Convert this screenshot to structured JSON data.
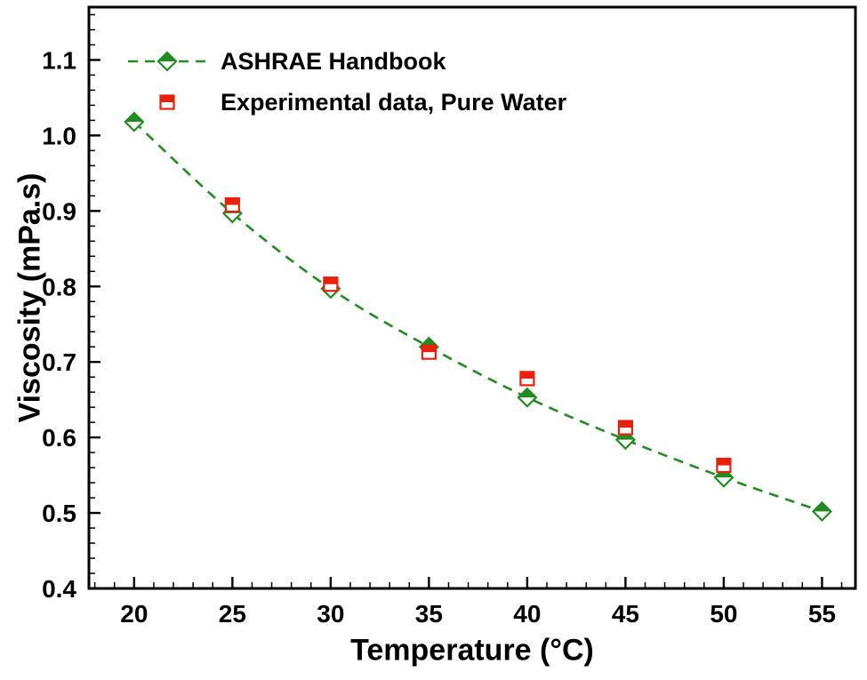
{
  "figure": {
    "background": "#ffffff",
    "frame_color": "#000000",
    "text_color": "#000000"
  },
  "chart_data": {
    "type": "line+scatter",
    "title": "",
    "xlabel": "Temperature (°C)",
    "ylabel": "Viscosity (mPa.s)",
    "xlim": [
      17.7,
      56.7
    ],
    "ylim": [
      0.4,
      1.17
    ],
    "xtick_values": [
      20,
      25,
      30,
      35,
      40,
      45,
      50,
      55
    ],
    "xtick_labels": [
      "20",
      "25",
      "30",
      "35",
      "40",
      "45",
      "50",
      "55"
    ],
    "ytick_values": [
      0.4,
      0.5,
      0.6,
      0.7,
      0.8,
      0.9,
      1.0,
      1.1
    ],
    "ytick_labels": [
      "0.4",
      "0.5",
      "0.6",
      "0.7",
      "0.8",
      "0.9",
      "1.0",
      "1.1"
    ],
    "x_minor_step": 1,
    "y_minor_step": 0.02,
    "grid": false,
    "legend_position": "top-left",
    "series": [
      {
        "name": "ASHRAE Handbook",
        "marker": "diamond",
        "marker_fill": "half-top",
        "color": "#228B22",
        "line_style": "dashed",
        "x": [
          20,
          25,
          30,
          35,
          40,
          45,
          50,
          55
        ],
        "values": [
          1.018,
          0.897,
          0.797,
          0.72,
          0.653,
          0.597,
          0.547,
          0.502
        ]
      },
      {
        "name": "Experimental data, Pure Water",
        "marker": "square",
        "marker_fill": "half-top",
        "color": "#e8200c",
        "line_style": "none",
        "x": [
          25,
          30,
          35,
          40,
          45,
          50
        ],
        "values": [
          0.908,
          0.803,
          0.713,
          0.678,
          0.613,
          0.563
        ]
      }
    ]
  }
}
